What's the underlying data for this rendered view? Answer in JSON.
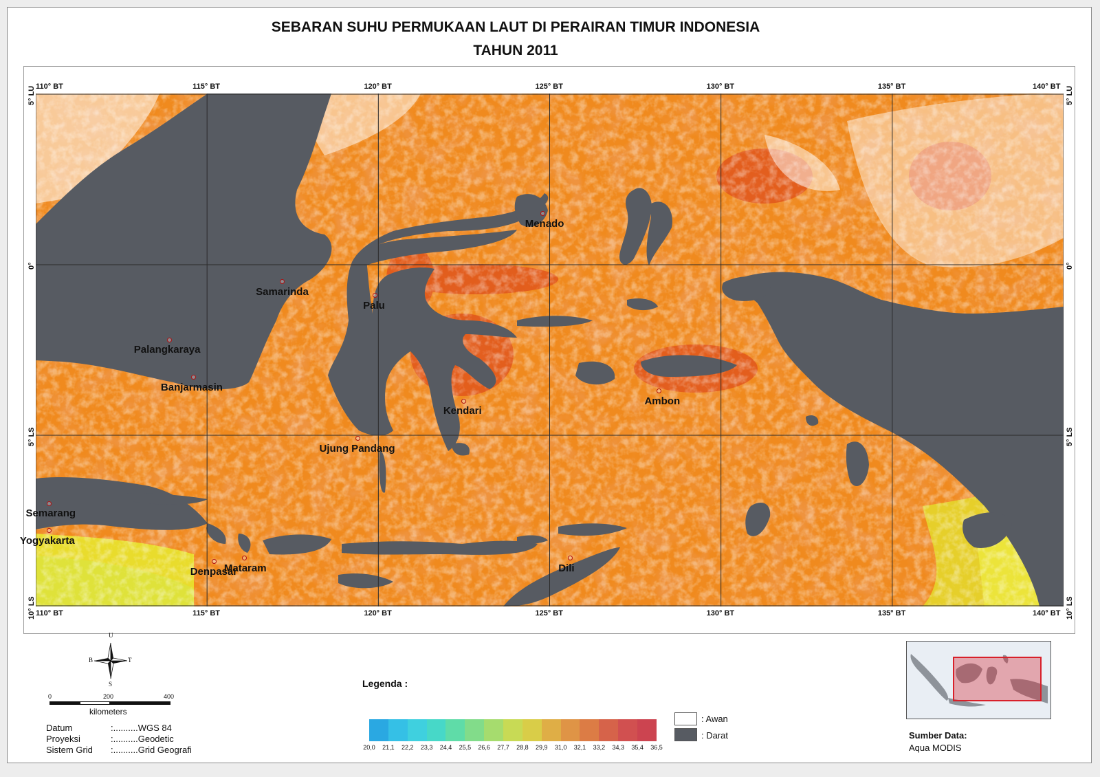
{
  "title": {
    "line1": "SEBARAN SUHU PERMUKAAN LAUT DI PERAIRAN TIMUR INDONESIA",
    "line2": "TAHUN 2011"
  },
  "colors": {
    "land": "#575b62",
    "cloud": "#ffffff",
    "sea_main": "#f08a1e",
    "sea_warm": "#e0561c",
    "sea_cool": "#e4d730",
    "grid": "#2b2b2b"
  },
  "grid": {
    "lon_labels": [
      "110° BT",
      "115° BT",
      "120° BT",
      "125° BT",
      "130° BT",
      "135° BT",
      "140° BT"
    ],
    "lat_labels": [
      "5° LU",
      "0°",
      "5° LS",
      "10° LS"
    ]
  },
  "cities": [
    {
      "name": "Menado",
      "lon": 124.8,
      "lat": 1.5
    },
    {
      "name": "Samarinda",
      "lon": 117.2,
      "lat": -0.5
    },
    {
      "name": "Palu",
      "lon": 119.9,
      "lat": -0.9
    },
    {
      "name": "Palangkaraya",
      "lon": 113.9,
      "lat": -2.2
    },
    {
      "name": "Banjarmasin",
      "lon": 114.6,
      "lat": -3.3
    },
    {
      "name": "Kendari",
      "lon": 122.5,
      "lat": -4.0
    },
    {
      "name": "Ambon",
      "lon": 128.2,
      "lat": -3.7
    },
    {
      "name": "Ujung Pandang",
      "lon": 119.4,
      "lat": -5.1
    },
    {
      "name": "Semarang",
      "lon": 110.4,
      "lat": -7.0
    },
    {
      "name": "Yogyakarta",
      "lon": 110.4,
      "lat": -7.8
    },
    {
      "name": "Mataram",
      "lon": 116.1,
      "lat": -8.6
    },
    {
      "name": "Denpasar",
      "lon": 115.2,
      "lat": -8.7
    },
    {
      "name": "Dili",
      "lon": 125.6,
      "lat": -8.6
    }
  ],
  "legend": {
    "title": "Legenda :",
    "ramp_values": [
      "20,0",
      "21,1",
      "22,2",
      "23,3",
      "24,4",
      "25,5",
      "26,6",
      "27,7",
      "28,8",
      "29,9",
      "31,0",
      "32,1",
      "33,2",
      "34,3",
      "35,4",
      "36,5"
    ],
    "ramp_colors": [
      "#2aa8e2",
      "#35c0e6",
      "#3fd0df",
      "#47d8c8",
      "#5fdca8",
      "#82dc8a",
      "#a6dc6e",
      "#c8da55",
      "#d9cd48",
      "#dfae46",
      "#df9446",
      "#dc7c45",
      "#d6634a",
      "#d15050",
      "#cc4450"
    ],
    "classes": [
      {
        "label": ": Awan",
        "color": "#ffffff"
      },
      {
        "label": ": Darat",
        "color": "#575b62"
      }
    ]
  },
  "compass": {
    "north": "U",
    "south": "S",
    "west": "B",
    "east": "T"
  },
  "scale": {
    "ticks": [
      "0",
      "200",
      "400"
    ],
    "unit": "kilometers"
  },
  "projection_info": [
    {
      "label": "Datum",
      "value": ":..........WGS 84"
    },
    {
      "label": "Proyeksi",
      "value": ":..........Geodetic"
    },
    {
      "label": "Sistem Grid",
      "value": ":..........Grid Geografi"
    }
  ],
  "source": {
    "title": "Sumber Data:",
    "value": "Aqua MODIS"
  }
}
